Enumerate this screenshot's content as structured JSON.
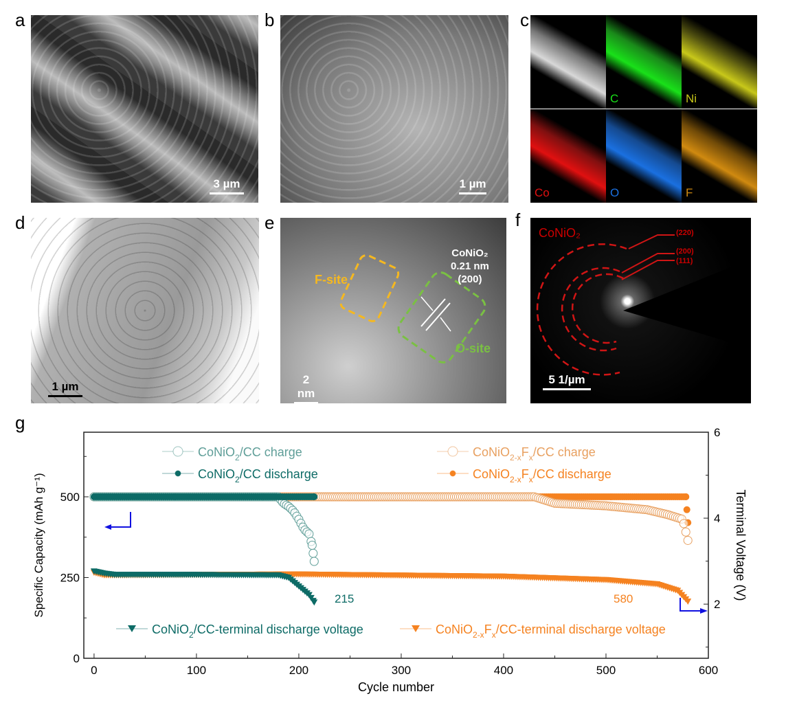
{
  "panels": {
    "a": {
      "label": "a",
      "scale": "3 µm"
    },
    "b": {
      "label": "b",
      "scale": "1 µm"
    },
    "c": {
      "label": "c",
      "maps": [
        "",
        "C",
        "Ni",
        "Co",
        "O",
        "F"
      ],
      "map_colors": [
        "#d8d8d8",
        "#19e019",
        "#c8c81a",
        "#e01010",
        "#1a70e0",
        "#d08a10"
      ]
    },
    "d": {
      "label": "d",
      "scale": "1 µm"
    },
    "e": {
      "label": "e",
      "scale": "2 nm",
      "f_site": "F-site",
      "o_site": "O-site",
      "phase": "CoNiO₂",
      "d_spacing": "0.21 nm",
      "plane": "(200)"
    },
    "f": {
      "label": "f",
      "scale": "5 1/µm",
      "phase": "CoNiO₂",
      "rings": [
        "(220)",
        "(200)",
        "(111)"
      ]
    },
    "g": {
      "label": "g"
    }
  },
  "chart_data": {
    "type": "scatter",
    "xlabel": "Cycle number",
    "ylabel": "Specific Capacity (mAh g⁻¹)",
    "ylabel_right": "Terminal Voltage (V)",
    "xlim": [
      -10,
      600
    ],
    "ylim": [
      0,
      700
    ],
    "ylim_right": [
      0.74,
      6
    ],
    "xticks": [
      "0",
      "100",
      "200",
      "300",
      "400",
      "500",
      "600"
    ],
    "yticks": [
      "0",
      "250",
      "500"
    ],
    "yticks_right": [
      "2",
      "4",
      "6"
    ],
    "annotations": [
      "215",
      "580"
    ],
    "series": [
      {
        "name": "CoNiO2/CC charge",
        "axis": "left",
        "marker": "open-circle",
        "color": "#5f9e98",
        "label": [
          {
            "t": "CoNiO"
          },
          {
            "t": "2",
            "s": 1
          },
          {
            "t": "/CC charge"
          }
        ],
        "x": [
          0,
          180,
          185,
          190,
          195,
          200,
          205,
          210,
          213,
          215
        ],
        "y": [
          500,
          500,
          480,
          470,
          455,
          430,
          400,
          385,
          350,
          300
        ]
      },
      {
        "name": "CoNiO2/CC discharge",
        "axis": "left",
        "marker": "filled-circle",
        "color": "#0d6b66",
        "label": [
          {
            "t": "CoNiO"
          },
          {
            "t": "2",
            "s": 1
          },
          {
            "t": "/CC discharge"
          }
        ],
        "x": [
          0,
          215
        ],
        "y": [
          500,
          500
        ]
      },
      {
        "name": "CoNiO2-xFx/CC charge",
        "axis": "left",
        "marker": "open-circle",
        "color": "#e8a060",
        "label": [
          {
            "t": "CoNiO"
          },
          {
            "t": "2-x",
            "s": 1
          },
          {
            "t": "F"
          },
          {
            "t": "x",
            "s": 1
          },
          {
            "t": "/CC charge"
          }
        ],
        "x": [
          0,
          430,
          450,
          500,
          540,
          560,
          575,
          580
        ],
        "y": [
          500,
          500,
          480,
          472,
          460,
          445,
          430,
          365
        ]
      },
      {
        "name": "CoNiO2-xFx/CC discharge",
        "axis": "left",
        "marker": "filled-circle",
        "color": "#f58220",
        "label": [
          {
            "t": "CoNiO"
          },
          {
            "t": "2-x",
            "s": 1
          },
          {
            "t": "F"
          },
          {
            "t": "x",
            "s": 1
          },
          {
            "t": "/CC discharge"
          }
        ],
        "x": [
          0,
          578,
          579,
          580
        ],
        "y": [
          500,
          500,
          460,
          420
        ]
      },
      {
        "name": "CoNiO2/CC-terminal discharge voltage",
        "axis": "right",
        "marker": "down-triangle",
        "color": "#0d6b66",
        "label": [
          {
            "t": "CoNiO"
          },
          {
            "t": "2",
            "s": 1
          },
          {
            "t": "/CC-terminal discharge voltage"
          }
        ],
        "x": [
          0,
          10,
          20,
          100,
          180,
          190,
          200,
          210,
          215
        ],
        "y": [
          2.75,
          2.7,
          2.67,
          2.67,
          2.66,
          2.6,
          2.4,
          2.2,
          2.03
        ]
      },
      {
        "name": "CoNiO2-xFx/CC-terminal discharge voltage",
        "axis": "right",
        "marker": "down-triangle",
        "color": "#f58220",
        "label": [
          {
            "t": "CoNiO"
          },
          {
            "t": "2-x",
            "s": 1
          },
          {
            "t": "F"
          },
          {
            "t": "x",
            "s": 1
          },
          {
            "t": "/CC-terminal discharge voltage"
          }
        ],
        "x": [
          0,
          10,
          20,
          200,
          400,
          500,
          550,
          570,
          580
        ],
        "y": [
          2.72,
          2.66,
          2.66,
          2.68,
          2.63,
          2.55,
          2.45,
          2.3,
          2.05
        ]
      }
    ]
  }
}
